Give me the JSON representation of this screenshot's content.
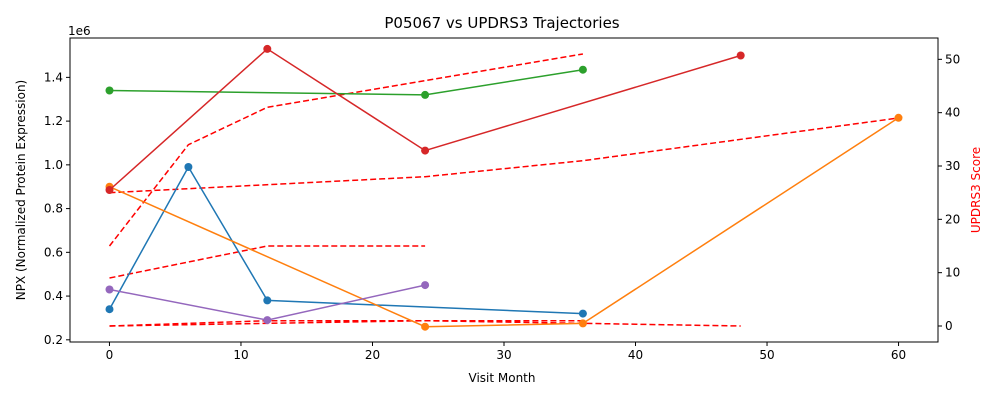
{
  "chart_data": {
    "type": "line",
    "title": "P05067 vs UPDRS3 Trajectories",
    "xlabel": "Visit Month",
    "ylabel": "NPX (Normalized Protein Expression)",
    "y2label": "UPDRS3 Score",
    "y_offset_label": "1e6",
    "xlim": [
      -3,
      63
    ],
    "ylim": [
      0.19,
      1.58
    ],
    "y2lim": [
      -3,
      54
    ],
    "xticks": [
      0,
      10,
      20,
      30,
      40,
      50,
      60
    ],
    "yticks": [
      0.2,
      0.4,
      0.6,
      0.8,
      1.0,
      1.2,
      1.4
    ],
    "ytick_labels": [
      "0.2",
      "0.4",
      "0.6",
      "0.8",
      "1.0",
      "1.2",
      "1.4"
    ],
    "y2ticks": [
      0,
      10,
      20,
      30,
      40,
      50
    ],
    "grid": false,
    "legend": "none",
    "npx_series": [
      {
        "color": "#1f77b4",
        "x": [
          0,
          6,
          12,
          36
        ],
        "y": [
          0.34,
          0.99,
          0.38,
          0.32
        ]
      },
      {
        "color": "#ff7f0e",
        "x": [
          0,
          24,
          36,
          60
        ],
        "y": [
          0.9,
          0.26,
          0.275,
          1.215
        ]
      },
      {
        "color": "#2ca02c",
        "x": [
          0,
          24,
          36
        ],
        "y": [
          1.34,
          1.32,
          1.435
        ]
      },
      {
        "color": "#d62728",
        "x": [
          0,
          12,
          24,
          48
        ],
        "y": [
          0.885,
          1.53,
          1.065,
          1.5
        ]
      },
      {
        "color": "#9467bd",
        "x": [
          0,
          12,
          24
        ],
        "y": [
          0.43,
          0.29,
          0.45
        ]
      }
    ],
    "updrs3_series": [
      {
        "color": "#ff0000",
        "x": [
          0,
          6,
          12,
          36
        ],
        "y": [
          15,
          34,
          41,
          51
        ]
      },
      {
        "color": "#ff0000",
        "x": [
          0,
          24,
          36,
          60
        ],
        "y": [
          25,
          28,
          31,
          39
        ]
      },
      {
        "color": "#ff0000",
        "x": [
          0,
          12,
          24
        ],
        "y": [
          9,
          15,
          15
        ]
      },
      {
        "color": "#ff0000",
        "x": [
          0,
          12,
          24,
          36
        ],
        "y": [
          0,
          1,
          1,
          1
        ]
      },
      {
        "color": "#ff0000",
        "x": [
          0,
          24,
          48
        ],
        "y": [
          0,
          1,
          0
        ]
      }
    ]
  }
}
